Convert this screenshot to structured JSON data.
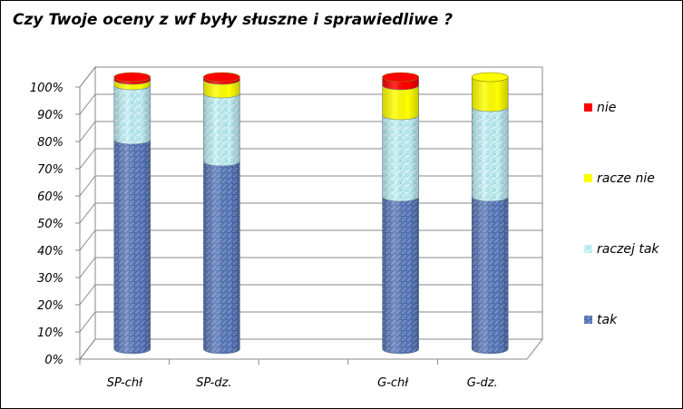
{
  "chart_data": {
    "type": "bar",
    "stacked": true,
    "percent": true,
    "three_d": true,
    "title": "Czy Twoje oceny z wf były słuszne i sprawiedliwe ?",
    "categories": [
      "SP-chł",
      "SP-dz.",
      "",
      "G-chł",
      "G-dz."
    ],
    "y_ticks": [
      "0%",
      "10%",
      "20%",
      "30%",
      "40%",
      "50%",
      "60%",
      "70%",
      "80%",
      "90%",
      "100%"
    ],
    "ylim": [
      0,
      100
    ],
    "grid": true,
    "legend_position": "right",
    "series": [
      {
        "name": "tak",
        "color": "#4f6fb0",
        "values": [
          77,
          69,
          null,
          56,
          56
        ]
      },
      {
        "name": "raczej tak",
        "color": "#a9e6ee",
        "values": [
          20,
          25,
          null,
          30,
          33
        ]
      },
      {
        "name": "racze nie",
        "color": "#ffff00",
        "values": [
          2,
          5,
          null,
          11,
          11
        ]
      },
      {
        "name": "nie",
        "color": "#ff0000",
        "values": [
          1,
          1,
          null,
          3,
          0
        ]
      }
    ],
    "legend_order": [
      "nie",
      "racze nie",
      "raczej tak",
      "tak"
    ]
  }
}
